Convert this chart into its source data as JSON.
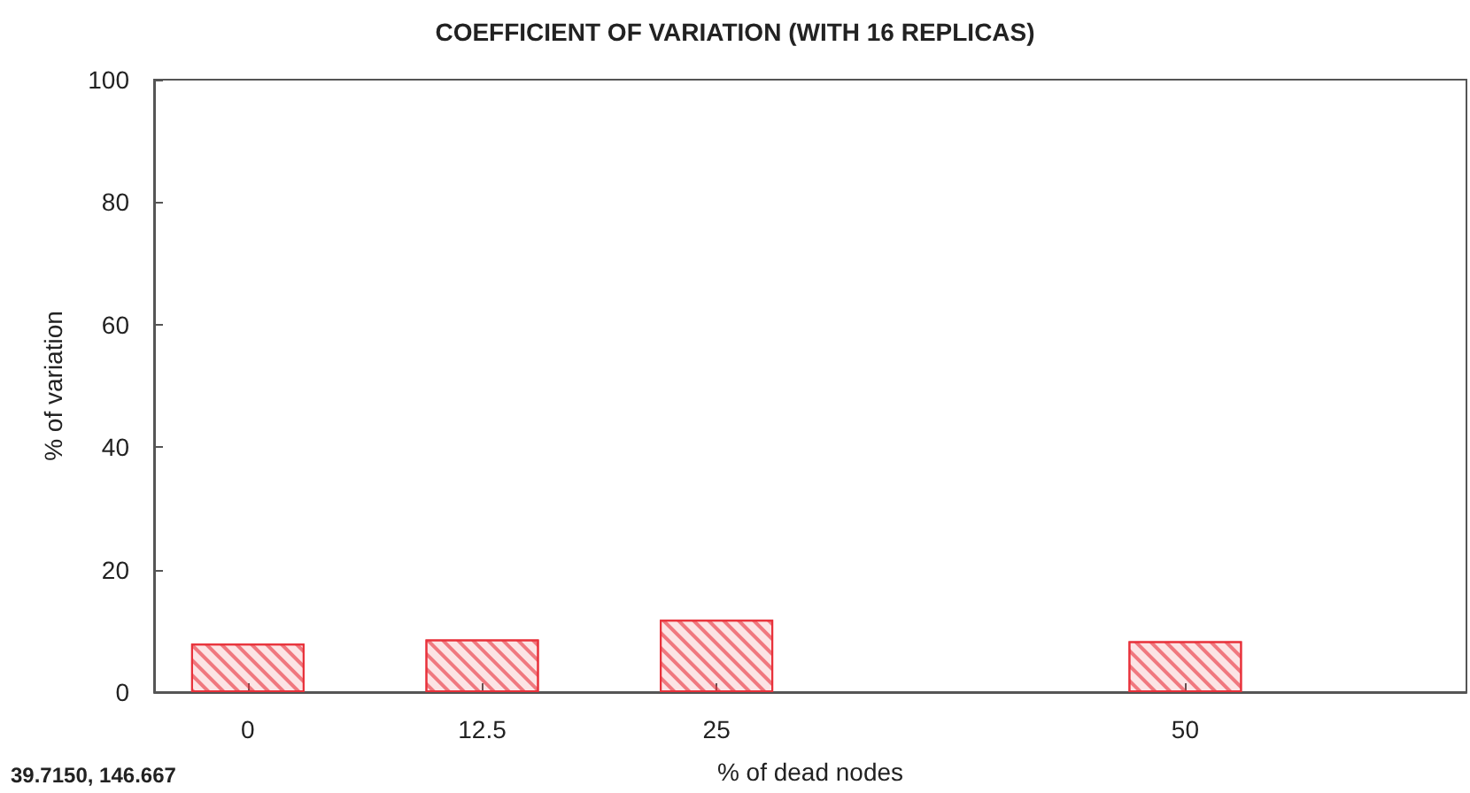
{
  "chart_data": {
    "type": "bar",
    "title": "COEFFICIENT OF VARIATION (WITH 16 REPLICAS)",
    "xlabel": "% of dead nodes",
    "ylabel": "% of variation",
    "x": [
      0,
      12.5,
      25,
      50
    ],
    "series": [
      {
        "color": "#e8313a",
        "values": [
          7.9,
          8.6,
          11.8,
          8.3
        ]
      }
    ],
    "xlim": [
      -5,
      65
    ],
    "xticks": [
      0,
      12.5,
      25,
      50
    ],
    "ylim": [
      0,
      100
    ],
    "yticks": [
      0,
      20,
      40,
      60,
      80,
      100
    ],
    "annotations": [
      "39.7150, 146.667"
    ]
  }
}
